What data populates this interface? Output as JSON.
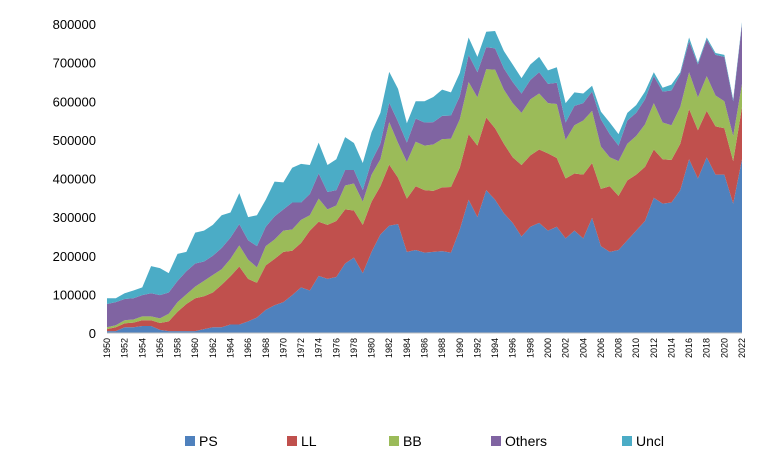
{
  "chart_data": {
    "type": "area",
    "stacked": true,
    "title": "",
    "xlabel": "",
    "ylabel": "",
    "ylim": [
      0,
      800000
    ],
    "yticks": [
      0,
      100000,
      200000,
      300000,
      400000,
      500000,
      600000,
      700000,
      800000
    ],
    "ytick_labels": [
      "0",
      "100000",
      "200000",
      "300000",
      "400000",
      "500000",
      "600000",
      "700000",
      "800000"
    ],
    "grid": false,
    "legend_position": "bottom",
    "x": [
      1950,
      1951,
      1952,
      1953,
      1954,
      1955,
      1956,
      1957,
      1958,
      1959,
      1960,
      1961,
      1962,
      1963,
      1964,
      1965,
      1966,
      1967,
      1968,
      1969,
      1970,
      1971,
      1972,
      1973,
      1974,
      1975,
      1976,
      1977,
      1978,
      1979,
      1980,
      1981,
      1982,
      1983,
      1984,
      1985,
      1986,
      1987,
      1988,
      1989,
      1990,
      1991,
      1992,
      1993,
      1994,
      1995,
      1996,
      1997,
      1998,
      1999,
      2000,
      2001,
      2002,
      2003,
      2004,
      2005,
      2006,
      2007,
      2008,
      2009,
      2010,
      2011,
      2012,
      2013,
      2014,
      2015,
      2016,
      2017,
      2018,
      2019,
      2020,
      2021,
      2022
    ],
    "xtick_labels": [
      "1950",
      "1952",
      "1954",
      "1956",
      "1958",
      "1960",
      "1962",
      "1964",
      "1966",
      "1968",
      "1970",
      "1972",
      "1974",
      "1976",
      "1978",
      "1980",
      "1982",
      "1984",
      "1986",
      "1988",
      "1990",
      "1992",
      "1994",
      "1996",
      "1998",
      "2000",
      "2002",
      "2004",
      "2006",
      "2008",
      "2010",
      "2012",
      "2014",
      "2016",
      "2018",
      "2020",
      "2022"
    ],
    "colors": {
      "PS": "#4f81bd",
      "LL": "#c0504d",
      "BB": "#9bbb59",
      "Others": "#8064a2",
      "Uncl": "#4bacc6"
    },
    "series": [
      {
        "name": "PS",
        "values": [
          5000,
          5000,
          15000,
          15000,
          18000,
          18000,
          8000,
          5000,
          5000,
          5000,
          5000,
          10000,
          15000,
          15000,
          22000,
          22000,
          30000,
          40000,
          60000,
          72000,
          80000,
          98000,
          118000,
          110000,
          148000,
          140000,
          145000,
          180000,
          195000,
          155000,
          210000,
          255000,
          278000,
          282000,
          210000,
          215000,
          208000,
          210000,
          212000,
          208000,
          268000,
          345000,
          300000,
          370000,
          345000,
          310000,
          285000,
          250000,
          275000,
          285000,
          265000,
          275000,
          245000,
          265000,
          245000,
          298000,
          225000,
          210000,
          215000,
          240000,
          265000,
          290000,
          350000,
          335000,
          338000,
          370000,
          450000,
          400000,
          455000,
          410000,
          410000,
          335000,
          450000
        ]
      },
      {
        "name": "LL",
        "values": [
          5000,
          10000,
          10000,
          12000,
          15000,
          15000,
          18000,
          25000,
          50000,
          70000,
          85000,
          85000,
          90000,
          110000,
          125000,
          150000,
          110000,
          90000,
          115000,
          120000,
          130000,
          115000,
          115000,
          155000,
          140000,
          140000,
          145000,
          140000,
          122000,
          125000,
          130000,
          125000,
          158000,
          120000,
          138000,
          165000,
          162000,
          158000,
          165000,
          170000,
          160000,
          170000,
          185000,
          188000,
          185000,
          180000,
          170000,
          185000,
          185000,
          190000,
          200000,
          178000,
          155000,
          148000,
          165000,
          142000,
          148000,
          170000,
          140000,
          155000,
          145000,
          140000,
          125000,
          115000,
          110000,
          120000,
          130000,
          125000,
          120000,
          125000,
          120000,
          110000,
          135000
        ]
      },
      {
        "name": "BB",
        "values": [
          5000,
          5000,
          8000,
          8000,
          10000,
          10000,
          12000,
          20000,
          25000,
          25000,
          30000,
          40000,
          45000,
          40000,
          45000,
          55000,
          50000,
          40000,
          50000,
          50000,
          55000,
          55000,
          60000,
          40000,
          60000,
          40000,
          40000,
          62000,
          70000,
          60000,
          70000,
          70000,
          110000,
          90000,
          95000,
          115000,
          115000,
          120000,
          125000,
          125000,
          125000,
          135000,
          125000,
          125000,
          152000,
          140000,
          140000,
          135000,
          145000,
          145000,
          130000,
          140000,
          100000,
          125000,
          140000,
          135000,
          110000,
          75000,
          90000,
          95000,
          100000,
          110000,
          120000,
          95000,
          90000,
          95000,
          95000,
          85000,
          90000,
          80000,
          70000,
          65000,
          60000
        ]
      },
      {
        "name": "Others",
        "values": [
          60000,
          60000,
          55000,
          55000,
          55000,
          60000,
          60000,
          55000,
          55000,
          60000,
          60000,
          50000,
          50000,
          55000,
          55000,
          55000,
          50000,
          55000,
          50000,
          60000,
          55000,
          70000,
          45000,
          55000,
          65000,
          45000,
          40000,
          40000,
          35000,
          30000,
          35000,
          40000,
          50000,
          55000,
          50000,
          60000,
          60000,
          58000,
          60000,
          60000,
          60000,
          70000,
          65000,
          57000,
          55000,
          55000,
          55000,
          50000,
          50000,
          55000,
          50000,
          55000,
          45000,
          50000,
          45000,
          50000,
          70000,
          60000,
          40000,
          60000,
          60000,
          65000,
          70000,
          80000,
          90000,
          85000,
          80000,
          85000,
          95000,
          105000,
          115000,
          90000,
          155000
        ]
      },
      {
        "name": "Uncl",
        "values": [
          15000,
          10000,
          15000,
          20000,
          20000,
          70000,
          70000,
          50000,
          70000,
          50000,
          80000,
          80000,
          80000,
          85000,
          65000,
          80000,
          60000,
          80000,
          70000,
          90000,
          70000,
          90000,
          100000,
          75000,
          80000,
          70000,
          80000,
          85000,
          70000,
          70000,
          75000,
          80000,
          80000,
          85000,
          50000,
          45000,
          55000,
          65000,
          68000,
          60000,
          60000,
          45000,
          40000,
          40000,
          45000,
          45000,
          45000,
          40000,
          40000,
          40000,
          35000,
          40000,
          50000,
          35000,
          25000,
          15000,
          20000,
          30000,
          30000,
          20000,
          20000,
          20000,
          10000,
          10000,
          15000,
          5000,
          10000,
          5000,
          5000,
          5000,
          5000,
          5000,
          5000
        ]
      }
    ]
  }
}
